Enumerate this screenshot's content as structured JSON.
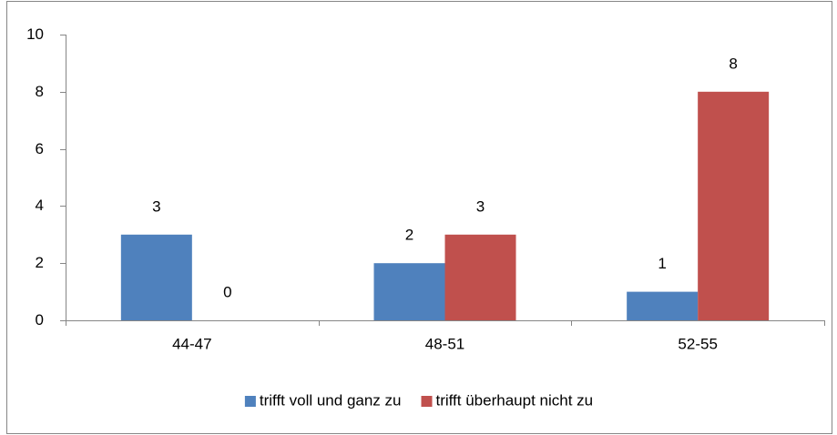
{
  "chart_data": {
    "type": "bar",
    "categories": [
      "44-47",
      "48-51",
      "52-55"
    ],
    "series": [
      {
        "name": "trifft voll und ganz zu",
        "color": "#4f81bd",
        "values": [
          3,
          2,
          1
        ]
      },
      {
        "name": "trifft überhaupt nicht zu",
        "color": "#c0504d",
        "values": [
          0,
          3,
          8
        ]
      }
    ],
    "ylim": [
      0,
      10
    ],
    "yticks": [
      0,
      2,
      4,
      6,
      8,
      10
    ],
    "grid": false,
    "legend": "bottom"
  }
}
